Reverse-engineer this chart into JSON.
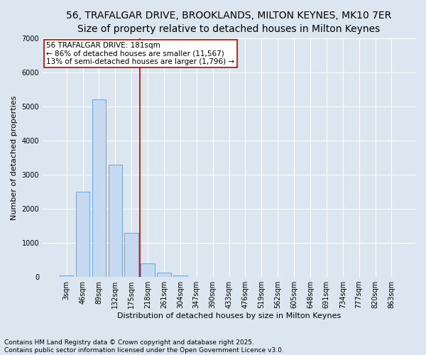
{
  "title": "56, TRAFALGAR DRIVE, BROOKLANDS, MILTON KEYNES, MK10 7ER",
  "subtitle": "Size of property relative to detached houses in Milton Keynes",
  "xlabel": "Distribution of detached houses by size in Milton Keynes",
  "ylabel": "Number of detached properties",
  "categories": [
    "3sqm",
    "46sqm",
    "89sqm",
    "132sqm",
    "175sqm",
    "218sqm",
    "261sqm",
    "304sqm",
    "347sqm",
    "390sqm",
    "433sqm",
    "476sqm",
    "519sqm",
    "562sqm",
    "605sqm",
    "648sqm",
    "691sqm",
    "734sqm",
    "777sqm",
    "820sqm",
    "863sqm"
  ],
  "values": [
    50,
    2500,
    5200,
    3300,
    1300,
    400,
    130,
    50,
    10,
    0,
    0,
    0,
    0,
    0,
    0,
    0,
    0,
    0,
    0,
    0,
    0
  ],
  "bar_color": "#c5d9f0",
  "bar_edge_color": "#5b9bd5",
  "vline_color": "#c00000",
  "vline_x": 4.5,
  "annotation_text": "56 TRAFALGAR DRIVE: 181sqm\n← 86% of detached houses are smaller (11,567)\n13% of semi-detached houses are larger (1,796) →",
  "annotation_box_color": "#ffffff",
  "annotation_box_edge": "#c00000",
  "ylim": [
    0,
    7000
  ],
  "yticks": [
    0,
    1000,
    2000,
    3000,
    4000,
    5000,
    6000,
    7000
  ],
  "bg_color": "#dce6f1",
  "plot_bg_color": "#dce6f1",
  "footer": "Contains HM Land Registry data © Crown copyright and database right 2025.\nContains public sector information licensed under the Open Government Licence v3.0.",
  "title_fontsize": 10,
  "xlabel_fontsize": 8,
  "ylabel_fontsize": 8,
  "tick_fontsize": 7,
  "annotation_fontsize": 7.5,
  "footer_fontsize": 6.5
}
